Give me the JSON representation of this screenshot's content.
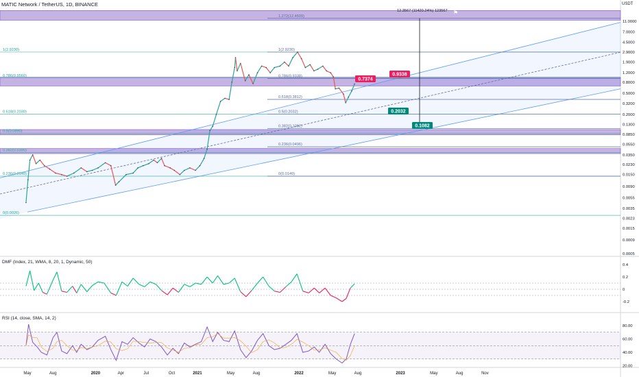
{
  "header": {
    "title": "MATIC Network / TetherUS, 1D, BINANCE",
    "currency": "USDT"
  },
  "chart_data": {
    "type": "line",
    "title": "MATIC Network / TetherUS, 1D, BINANCE",
    "y_scale": "log",
    "y_axis_unit": "USDT",
    "y_ticks": [
      "11.0000",
      "7.0000",
      "4.5000",
      "2.9000",
      "1.9000",
      "1.2000",
      "0.8000",
      "0.5000",
      "0.3200",
      "0.2000",
      "0.1300",
      "0.0850",
      "0.0550",
      "0.0350",
      "0.0230",
      "0.0150",
      "0.0090",
      "0.0055",
      "0.0035",
      "0.0023",
      "0.0015",
      "0.0009",
      "0.0005"
    ],
    "x_ticks": [
      "May",
      "Aug",
      "2020",
      "Apr",
      "Jul",
      "Oct",
      "2021",
      "May",
      "Aug",
      "2022",
      "May",
      "Aug",
      "2023",
      "May",
      "Aug",
      "Nov"
    ],
    "price_series": [
      [
        "2019-04-26",
        0.0045
      ],
      [
        "2019-05-03",
        0.012
      ],
      [
        "2019-05-10",
        0.028
      ],
      [
        "2019-05-20",
        0.035
      ],
      [
        "2019-06-01",
        0.024
      ],
      [
        "2019-06-15",
        0.028
      ],
      [
        "2019-07-01",
        0.022
      ],
      [
        "2019-07-20",
        0.019
      ],
      [
        "2019-08-10",
        0.016
      ],
      [
        "2019-09-01",
        0.015
      ],
      [
        "2019-09-20",
        0.014
      ],
      [
        "2019-10-15",
        0.016
      ],
      [
        "2019-11-10",
        0.02
      ],
      [
        "2019-12-01",
        0.017
      ],
      [
        "2019-12-20",
        0.018
      ],
      [
        "2020-01-10",
        0.02
      ],
      [
        "2020-02-05",
        0.025
      ],
      [
        "2020-02-25",
        0.022
      ],
      [
        "2020-03-13",
        0.0095
      ],
      [
        "2020-03-25",
        0.011
      ],
      [
        "2020-04-20",
        0.015
      ],
      [
        "2020-05-15",
        0.016
      ],
      [
        "2020-06-01",
        0.02
      ],
      [
        "2020-06-20",
        0.022
      ],
      [
        "2020-07-10",
        0.024
      ],
      [
        "2020-07-28",
        0.028
      ],
      [
        "2020-08-10",
        0.025
      ],
      [
        "2020-08-25",
        0.03
      ],
      [
        "2020-09-05",
        0.022
      ],
      [
        "2020-09-25",
        0.02
      ],
      [
        "2020-10-10",
        0.018
      ],
      [
        "2020-10-30",
        0.015
      ],
      [
        "2020-11-15",
        0.018
      ],
      [
        "2020-12-05",
        0.02
      ],
      [
        "2020-12-25",
        0.018
      ],
      [
        "2021-01-10",
        0.022
      ],
      [
        "2021-01-25",
        0.03
      ],
      [
        "2021-02-05",
        0.045
      ],
      [
        "2021-02-15",
        0.1
      ],
      [
        "2021-02-25",
        0.12
      ],
      [
        "2021-03-10",
        0.2
      ],
      [
        "2021-03-25",
        0.35
      ],
      [
        "2021-04-10",
        0.4
      ],
      [
        "2021-04-25",
        0.38
      ],
      [
        "2021-05-05",
        0.8
      ],
      [
        "2021-05-15",
        1.5
      ],
      [
        "2021-05-18",
        2.3
      ],
      [
        "2021-05-24",
        1.3
      ],
      [
        "2021-06-05",
        1.8
      ],
      [
        "2021-06-22",
        0.85
      ],
      [
        "2021-07-05",
        1.1
      ],
      [
        "2021-07-20",
        0.75
      ],
      [
        "2021-08-05",
        1.2
      ],
      [
        "2021-08-20",
        1.6
      ],
      [
        "2021-09-05",
        1.5
      ],
      [
        "2021-09-20",
        1.2
      ],
      [
        "2021-10-05",
        1.5
      ],
      [
        "2021-10-25",
        1.6
      ],
      [
        "2021-11-10",
        1.9
      ],
      [
        "2021-11-25",
        1.6
      ],
      [
        "2021-12-10",
        2.3
      ],
      [
        "2021-12-27",
        2.92
      ],
      [
        "2022-01-10",
        2.2
      ],
      [
        "2022-01-24",
        1.5
      ],
      [
        "2022-02-10",
        1.7
      ],
      [
        "2022-02-24",
        1.3
      ],
      [
        "2022-03-10",
        1.4
      ],
      [
        "2022-03-28",
        1.6
      ],
      [
        "2022-04-10",
        1.3
      ],
      [
        "2022-04-25",
        1.2
      ],
      [
        "2022-05-05",
        1.0
      ],
      [
        "2022-05-12",
        0.6
      ],
      [
        "2022-05-25",
        0.62
      ],
      [
        "2022-06-10",
        0.48
      ],
      [
        "2022-06-18",
        0.33
      ],
      [
        "2022-06-28",
        0.42
      ],
      [
        "2022-07-10",
        0.55
      ],
      [
        "2022-07-20",
        0.74
      ]
    ],
    "fib_left": [
      {
        "label": "1(2.9230)",
        "value": 2.923
      },
      {
        "label": "0.786(0.9560)",
        "value": 0.956
      },
      {
        "label": "0.618(0.2030)",
        "value": 0.203
      },
      {
        "label": "0.5(0.0890)",
        "value": 0.089
      },
      {
        "label": "0.382(0.0390)",
        "value": 0.039
      },
      {
        "label": "0.236(0.0140)",
        "value": 0.014
      },
      {
        "label": "0(0.0026)",
        "value": 0.0026
      }
    ],
    "fib_right": [
      {
        "label": "1.272(12.4609)",
        "value": 12.4609
      },
      {
        "label": "1(2.9230)",
        "value": 2.923
      },
      {
        "label": "0.786(0.9338)",
        "value": 0.9338
      },
      {
        "label": "0.618(0.3812)",
        "value": 0.3812
      },
      {
        "label": "0.5(0.2032)",
        "value": 0.2032
      },
      {
        "label": "0.382(0.1082)",
        "value": 0.1082
      },
      {
        "label": "0.236(0.0496)",
        "value": 0.0496
      },
      {
        "label": "0(0.0140)",
        "value": 0.014
      }
    ],
    "zones": [
      {
        "from": 11.5,
        "to": 17.5
      },
      {
        "from": 0.68,
        "to": 0.99
      },
      {
        "from": 0.083,
        "to": 0.104
      },
      {
        "from": 0.037,
        "to": 0.046
      }
    ],
    "measure": {
      "label": "12.3567 (11420.24%) 123567",
      "from_value": 0.1082,
      "to_value": 12.4609
    },
    "price_tags": [
      {
        "text": "0.7374",
        "value": 0.7374,
        "color": "#e91e63"
      },
      {
        "text": "0.9338",
        "value": 0.9338,
        "color": "#e91e63"
      },
      {
        "text": "0.2032",
        "value": 0.2032,
        "color": "#00897b"
      },
      {
        "text": "0.1082",
        "value": 0.1082,
        "color": "#00897b"
      }
    ],
    "dmf": {
      "label": "DMF (Index, 21, WMA, 8, 20, 1, Dynamic, 50)",
      "y_ticks": [
        "0.4",
        "0.2",
        "0",
        "-0.2"
      ],
      "series": [
        [
          "2019-04-26",
          0.05
        ],
        [
          "2019-05-10",
          0.3
        ],
        [
          "2019-05-25",
          -0.02
        ],
        [
          "2019-06-10",
          0.1
        ],
        [
          "2019-06-25",
          -0.05
        ],
        [
          "2019-07-10",
          -0.08
        ],
        [
          "2019-08-01",
          0.15
        ],
        [
          "2019-08-15",
          0.28
        ],
        [
          "2019-09-01",
          -0.03
        ],
        [
          "2019-09-20",
          -0.05
        ],
        [
          "2019-10-10",
          0.05
        ],
        [
          "2019-10-25",
          -0.06
        ],
        [
          "2019-11-10",
          0.08
        ],
        [
          "2019-12-01",
          -0.04
        ],
        [
          "2019-12-20",
          0.06
        ],
        [
          "2020-01-10",
          0.12
        ],
        [
          "2020-02-01",
          0.1
        ],
        [
          "2020-02-25",
          -0.06
        ],
        [
          "2020-03-15",
          -0.1
        ],
        [
          "2020-04-05",
          0.12
        ],
        [
          "2020-04-25",
          0.05
        ],
        [
          "2020-05-15",
          0.18
        ],
        [
          "2020-06-05",
          0.08
        ],
        [
          "2020-06-25",
          0.04
        ],
        [
          "2020-07-15",
          0.12
        ],
        [
          "2020-08-05",
          0.08
        ],
        [
          "2020-08-25",
          -0.02
        ],
        [
          "2020-09-15",
          -0.09
        ],
        [
          "2020-10-05",
          0.02
        ],
        [
          "2020-10-25",
          -0.05
        ],
        [
          "2020-11-15",
          0.08
        ],
        [
          "2020-12-05",
          0.04
        ],
        [
          "2020-12-25",
          0.1
        ],
        [
          "2021-01-15",
          0.08
        ],
        [
          "2021-02-05",
          0.2
        ],
        [
          "2021-02-25",
          0.1
        ],
        [
          "2021-03-15",
          0.22
        ],
        [
          "2021-04-05",
          0.08
        ],
        [
          "2021-04-25",
          0.1
        ],
        [
          "2021-05-15",
          0.18
        ],
        [
          "2021-06-05",
          -0.04
        ],
        [
          "2021-06-25",
          -0.12
        ],
        [
          "2021-07-15",
          -0.02
        ],
        [
          "2021-08-05",
          0.1
        ],
        [
          "2021-08-25",
          0.2
        ],
        [
          "2021-09-15",
          0.05
        ],
        [
          "2021-10-05",
          -0.03
        ],
        [
          "2021-10-25",
          -0.05
        ],
        [
          "2021-11-15",
          0.04
        ],
        [
          "2021-12-05",
          0.12
        ],
        [
          "2021-12-25",
          0.25
        ],
        [
          "2022-01-15",
          -0.03
        ],
        [
          "2022-02-05",
          -0.06
        ],
        [
          "2022-02-25",
          0.02
        ],
        [
          "2022-03-15",
          -0.06
        ],
        [
          "2022-04-05",
          0.02
        ],
        [
          "2022-04-25",
          -0.1
        ],
        [
          "2022-05-15",
          -0.14
        ],
        [
          "2022-06-05",
          -0.2
        ],
        [
          "2022-06-20",
          -0.15
        ],
        [
          "2022-07-05",
          0.02
        ],
        [
          "2022-07-20",
          0.09
        ]
      ]
    },
    "rsi": {
      "label": "RSI (14, close, SMA, 14, 2)",
      "y_ticks": [
        "80.00",
        "60.00",
        "40.00",
        "20.00"
      ],
      "upper": 70,
      "middle": 50,
      "lower": 30,
      "series": [
        [
          "2019-04-26",
          50
        ],
        [
          "2019-05-05",
          82
        ],
        [
          "2019-05-20",
          55
        ],
        [
          "2019-06-05",
          48
        ],
        [
          "2019-06-20",
          40
        ],
        [
          "2019-07-10",
          36
        ],
        [
          "2019-08-01",
          62
        ],
        [
          "2019-08-15",
          70
        ],
        [
          "2019-09-01",
          42
        ],
        [
          "2019-09-20",
          38
        ],
        [
          "2019-10-10",
          50
        ],
        [
          "2019-10-25",
          40
        ],
        [
          "2019-11-10",
          52
        ],
        [
          "2019-12-01",
          44
        ],
        [
          "2019-12-20",
          48
        ],
        [
          "2020-01-10",
          58
        ],
        [
          "2020-02-05",
          64
        ],
        [
          "2020-02-25",
          44
        ],
        [
          "2020-03-15",
          28
        ],
        [
          "2020-04-05",
          56
        ],
        [
          "2020-04-25",
          52
        ],
        [
          "2020-05-15",
          62
        ],
        [
          "2020-06-05",
          54
        ],
        [
          "2020-06-25",
          48
        ],
        [
          "2020-07-15",
          60
        ],
        [
          "2020-08-05",
          56
        ],
        [
          "2020-08-25",
          48
        ],
        [
          "2020-09-15",
          36
        ],
        [
          "2020-10-05",
          46
        ],
        [
          "2020-10-25",
          38
        ],
        [
          "2020-11-15",
          54
        ],
        [
          "2020-12-05",
          48
        ],
        [
          "2020-12-25",
          52
        ],
        [
          "2021-01-15",
          56
        ],
        [
          "2021-02-05",
          78
        ],
        [
          "2021-02-25",
          56
        ],
        [
          "2021-03-15",
          70
        ],
        [
          "2021-04-05",
          58
        ],
        [
          "2021-04-25",
          56
        ],
        [
          "2021-05-15",
          72
        ],
        [
          "2021-06-05",
          44
        ],
        [
          "2021-06-25",
          32
        ],
        [
          "2021-07-15",
          42
        ],
        [
          "2021-08-05",
          58
        ],
        [
          "2021-08-25",
          68
        ],
        [
          "2021-09-15",
          50
        ],
        [
          "2021-10-05",
          44
        ],
        [
          "2021-10-25",
          46
        ],
        [
          "2021-11-15",
          52
        ],
        [
          "2021-12-05",
          58
        ],
        [
          "2021-12-25",
          68
        ],
        [
          "2022-01-15",
          40
        ],
        [
          "2022-02-05",
          42
        ],
        [
          "2022-02-25",
          48
        ],
        [
          "2022-03-15",
          40
        ],
        [
          "2022-04-05",
          52
        ],
        [
          "2022-04-25",
          38
        ],
        [
          "2022-05-15",
          30
        ],
        [
          "2022-06-05",
          24
        ],
        [
          "2022-06-20",
          30
        ],
        [
          "2022-07-05",
          52
        ],
        [
          "2022-07-20",
          68
        ]
      ]
    }
  }
}
